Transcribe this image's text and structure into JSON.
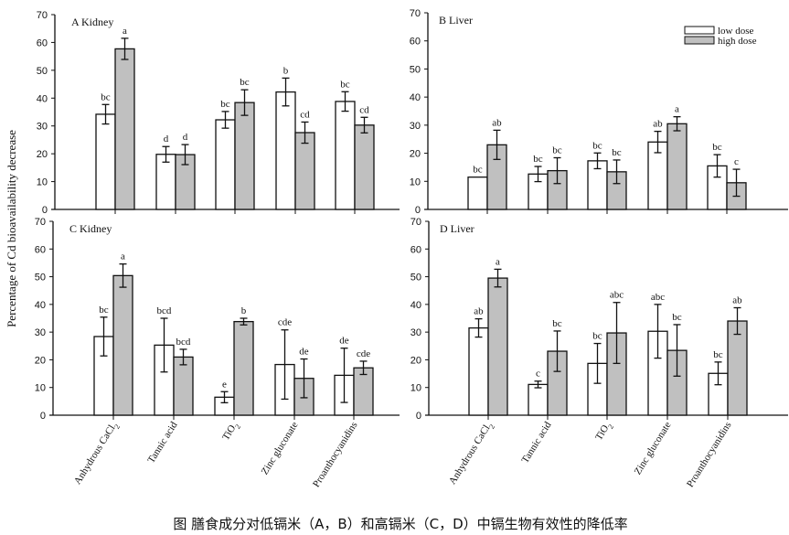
{
  "caption": "图  膳食成分对低镉米（A，B）和高镉米（C，D）中镉生物有效性的降低率",
  "ylabel": "Percentage of Cd bioavailability decrease",
  "colors": {
    "low": "#ffffff",
    "high": "#c0c0c0",
    "stroke": "#111111"
  },
  "chart_data": [
    {
      "type": "bar",
      "title": "A  Kidney",
      "ylim": [
        0,
        70
      ],
      "yticks": [
        0,
        10,
        20,
        30,
        40,
        50,
        60,
        70
      ],
      "categories": [
        "Anhydrous CaCl2",
        "Tannic acid",
        "TiO2",
        "Zinc gluconate",
        "Proanthocyanidins"
      ],
      "series": [
        {
          "name": "low dose",
          "values": [
            34.2,
            19.8,
            32.2,
            42.2,
            38.8
          ],
          "errors": [
            3.5,
            2.8,
            3.0,
            5.0,
            3.5
          ],
          "letters": [
            "bc",
            "d",
            "bc",
            "b",
            "bc"
          ]
        },
        {
          "name": "high dose",
          "values": [
            57.7,
            19.7,
            38.4,
            27.6,
            30.3
          ],
          "errors": [
            3.8,
            3.6,
            4.6,
            3.8,
            2.8
          ],
          "letters": [
            "a",
            "d",
            "bc",
            "cd",
            "cd"
          ]
        }
      ]
    },
    {
      "type": "bar",
      "title": "B  Liver",
      "ylim": [
        0,
        70
      ],
      "yticks": [
        0,
        10,
        20,
        30,
        40,
        50,
        60,
        70
      ],
      "legend": "top-right",
      "categories": [
        "Anhydrous CaCl2",
        "Tannic acid",
        "TiO2",
        "Zinc gluconate",
        "Proanthocyanidins"
      ],
      "series": [
        {
          "name": "low dose",
          "values": [
            11.5,
            12.6,
            17.3,
            24.0,
            15.5
          ],
          "errors": [
            0,
            2.7,
            2.8,
            3.8,
            4.0
          ],
          "letters": [
            "bc",
            "bc",
            "bc",
            "ab",
            "bc"
          ]
        },
        {
          "name": "high dose",
          "values": [
            23.0,
            13.8,
            13.4,
            30.5,
            9.5
          ],
          "errors": [
            5.2,
            4.6,
            4.2,
            2.5,
            4.8
          ],
          "letters": [
            "ab",
            "bc",
            "bc",
            "a",
            "c"
          ]
        }
      ]
    },
    {
      "type": "bar",
      "title": "C  Kidney",
      "ylim": [
        0,
        70
      ],
      "yticks": [
        0,
        10,
        20,
        30,
        40,
        50,
        60,
        70
      ],
      "categories": [
        "Anhydrous CaCl2",
        "Tannic acid",
        "TiO2",
        "Zinc gluconate",
        "Proanthocyanidins"
      ],
      "series": [
        {
          "name": "low dose",
          "values": [
            28.4,
            25.3,
            6.5,
            18.3,
            14.4
          ],
          "errors": [
            7.0,
            9.7,
            2.0,
            12.5,
            9.8
          ],
          "letters": [
            "bc",
            "bcd",
            "e",
            "cde",
            "de"
          ]
        },
        {
          "name": "high dose",
          "values": [
            50.4,
            21.0,
            33.8,
            13.3,
            17.1
          ],
          "errors": [
            4.2,
            2.8,
            1.2,
            7.0,
            2.4
          ],
          "letters": [
            "a",
            "bcd",
            "b",
            "de",
            "cde"
          ]
        }
      ]
    },
    {
      "type": "bar",
      "title": "D  Liver",
      "ylim": [
        0,
        70
      ],
      "yticks": [
        0,
        10,
        20,
        30,
        40,
        50,
        60,
        70
      ],
      "categories": [
        "Anhydrous CaCl2",
        "Tannic acid",
        "TiO2",
        "Zinc gluconate",
        "Proanthocyanidins"
      ],
      "series": [
        {
          "name": "low dose",
          "values": [
            31.5,
            11.1,
            18.7,
            30.3,
            15.1
          ],
          "errors": [
            3.3,
            1.2,
            7.2,
            9.7,
            4.1
          ],
          "letters": [
            "ab",
            "c",
            "bc",
            "abc",
            "bc"
          ]
        },
        {
          "name": "high dose",
          "values": [
            49.5,
            23.1,
            29.7,
            23.4,
            34.0
          ],
          "errors": [
            3.2,
            7.3,
            11.0,
            9.3,
            4.8
          ],
          "letters": [
            "a",
            "bc",
            "abc",
            "bc",
            "ab"
          ]
        }
      ]
    }
  ]
}
